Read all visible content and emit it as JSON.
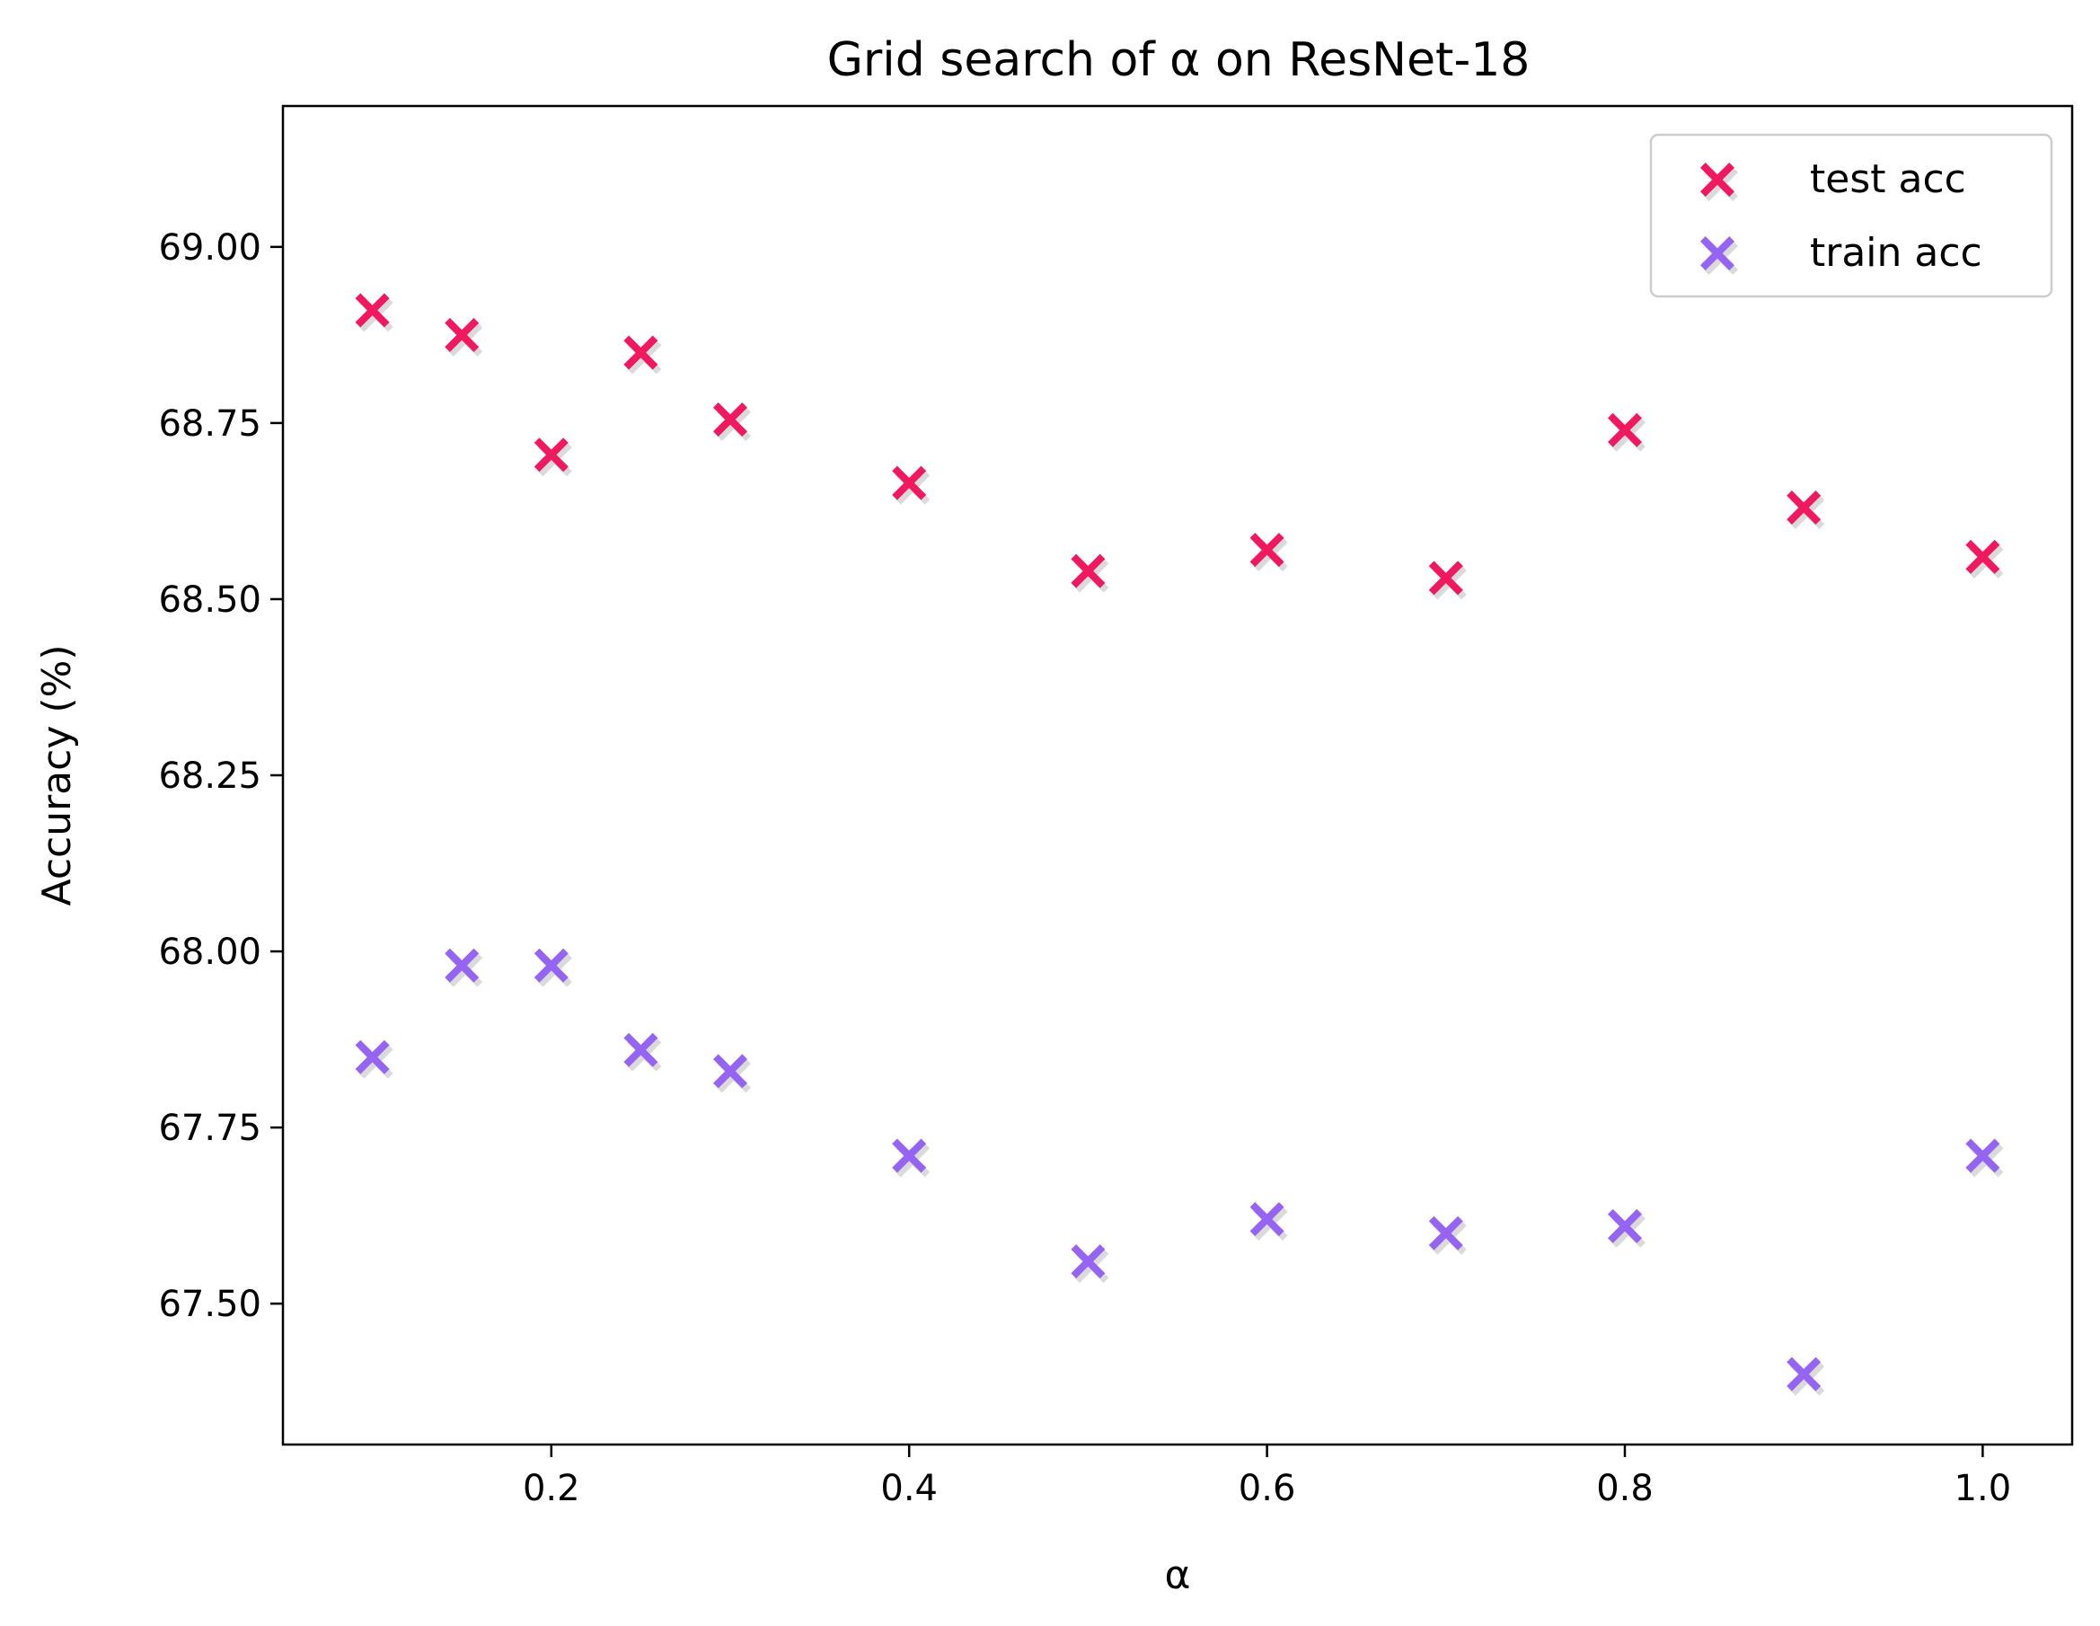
{
  "chart_data": {
    "type": "scatter",
    "title": "Grid search of α on ResNet-18",
    "xlabel": "α",
    "ylabel": "Accuracy (%)",
    "xlim": [
      0.05,
      1.05
    ],
    "ylim": [
      67.3,
      69.2
    ],
    "xticks": [
      0.2,
      0.4,
      0.6,
      0.8,
      1.0
    ],
    "xtick_labels": [
      "0.2",
      "0.4",
      "0.6",
      "0.8",
      "1.0"
    ],
    "yticks": [
      67.5,
      67.75,
      68.0,
      68.25,
      68.5,
      68.75,
      69.0
    ],
    "ytick_labels": [
      "67.50",
      "67.75",
      "68.00",
      "68.25",
      "68.50",
      "68.75",
      "69.00"
    ],
    "grid": false,
    "legend_position": "top-right",
    "x": [
      0.1,
      0.15,
      0.2,
      0.25,
      0.3,
      0.4,
      0.5,
      0.6,
      0.7,
      0.8,
      0.9,
      1.0
    ],
    "series": [
      {
        "name": "test acc",
        "color": "#f0185f",
        "marker": "x-icon",
        "values": [
          68.91,
          68.875,
          68.705,
          68.85,
          68.755,
          68.665,
          68.54,
          68.57,
          68.53,
          68.74,
          68.63,
          68.56
        ]
      },
      {
        "name": "train acc",
        "color": "#9564f2",
        "marker": "x-icon",
        "values": [
          67.85,
          67.98,
          67.98,
          67.86,
          67.83,
          67.71,
          67.56,
          67.62,
          67.6,
          67.61,
          67.4,
          67.71
        ]
      }
    ]
  }
}
